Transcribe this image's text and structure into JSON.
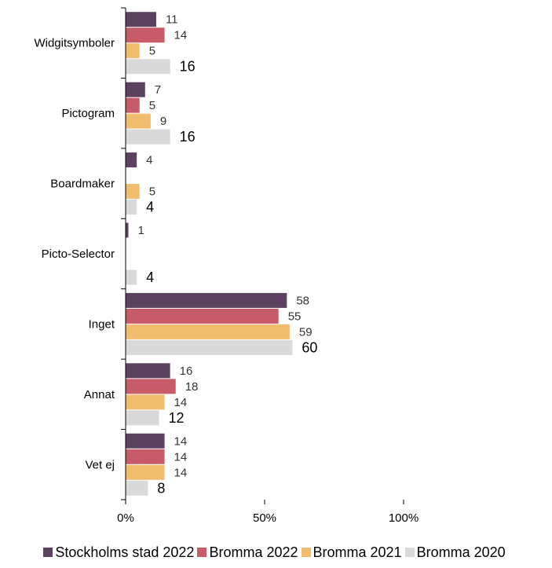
{
  "chart_data": {
    "type": "bar",
    "orientation": "horizontal",
    "title": "",
    "xlabel": "",
    "ylabel": "",
    "xlim": [
      0,
      100
    ],
    "x_ticks": [
      "0%",
      "50%",
      "100%"
    ],
    "categories": [
      "Widgitsymboler",
      "Pictogram",
      "Boardmaker",
      "Picto-Selector",
      "Inget",
      "Annat",
      "Vet ej"
    ],
    "series": [
      {
        "name": "Stockholms stad 2022",
        "color": "#5c4260",
        "values": [
          11,
          7,
          4,
          1,
          58,
          16,
          14
        ]
      },
      {
        "name": "Bromma 2022",
        "color": "#c75b68",
        "values": [
          14,
          5,
          null,
          null,
          55,
          18,
          14
        ]
      },
      {
        "name": "Bromma 2021",
        "color": "#f0bd6e",
        "values": [
          5,
          9,
          5,
          null,
          59,
          14,
          14
        ]
      },
      {
        "name": "Bromma 2020",
        "color": "#d9d9d9",
        "values": [
          16,
          16,
          4,
          4,
          60,
          12,
          8
        ]
      }
    ],
    "legend_position": "bottom",
    "grid": false
  }
}
